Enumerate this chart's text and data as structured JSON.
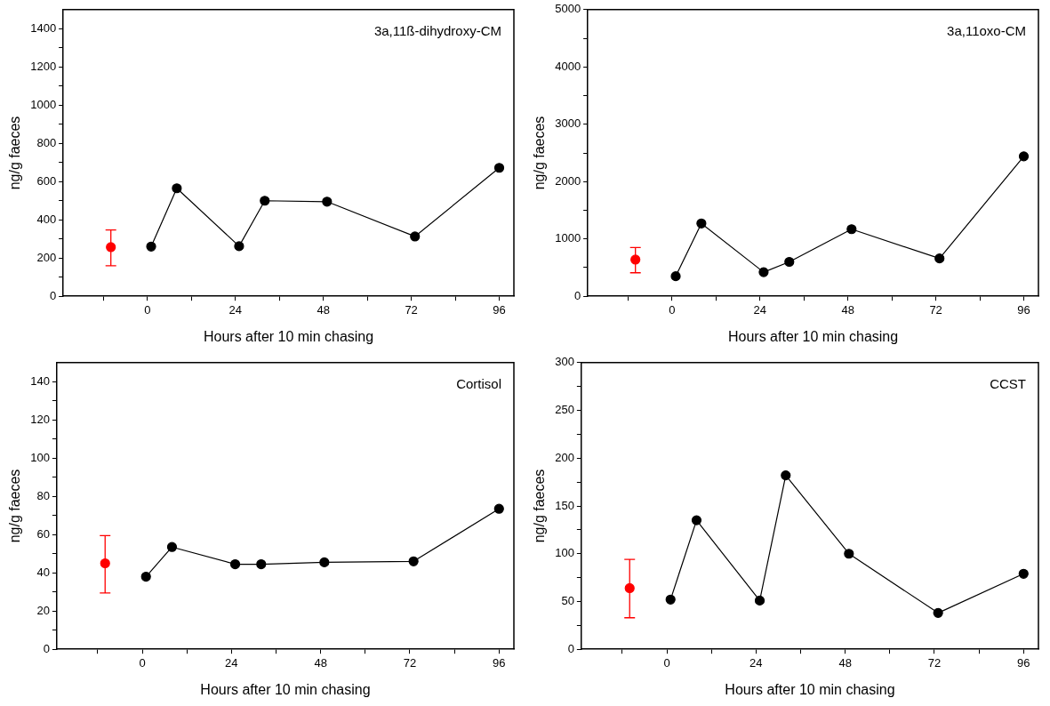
{
  "chart_data": [
    {
      "type": "line",
      "title": "3a,11ß-dihydroxy-CM",
      "xlabel": "Hours after 10 min chasing",
      "ylabel": "ng/g faeces",
      "marker": "circle",
      "xlim": [
        -23,
        100
      ],
      "xticks": [
        {
          "value": -12,
          "label": null
        },
        0,
        {
          "value": 12,
          "label": null
        },
        24,
        {
          "value": 36,
          "label": null
        },
        48,
        {
          "value": 60,
          "label": null
        },
        72,
        {
          "value": 84,
          "label": null
        },
        96
      ],
      "ylim": [
        0,
        1500
      ],
      "yticks": [
        0,
        {
          "value": 100,
          "label": null
        },
        200,
        {
          "value": 300,
          "label": null
        },
        400,
        {
          "value": 500,
          "label": null
        },
        600,
        {
          "value": 700,
          "label": null
        },
        800,
        {
          "value": 900,
          "label": null
        },
        1000,
        {
          "value": 1100,
          "label": null
        },
        1200,
        {
          "value": 1300,
          "label": null
        },
        1400
      ],
      "series": [
        {
          "type": "scatter",
          "color": "#ff0000",
          "x": [
            -10
          ],
          "values": [
            257
          ],
          "errors": [
            [
              160,
              347
            ]
          ]
        },
        {
          "type": "line",
          "color": "#000000",
          "x": [
            1,
            8,
            25,
            32,
            49,
            73,
            96
          ],
          "values": [
            260,
            565,
            262,
            500,
            495,
            313,
            672
          ]
        }
      ]
    },
    {
      "type": "line",
      "title": "3a,11oxo-CM",
      "xlabel": "Hours after 10 min chasing",
      "ylabel": "ng/g faeces",
      "marker": "circle",
      "xlim": [
        -23,
        100
      ],
      "xticks": [
        {
          "value": -12,
          "label": null
        },
        0,
        {
          "value": 12,
          "label": null
        },
        24,
        {
          "value": 36,
          "label": null
        },
        48,
        {
          "value": 60,
          "label": null
        },
        72,
        {
          "value": 84,
          "label": null
        },
        96
      ],
      "ylim": [
        0,
        5000
      ],
      "yticks": [
        0,
        {
          "value": 500,
          "label": null
        },
        1000,
        {
          "value": 1500,
          "label": null
        },
        2000,
        {
          "value": 2500,
          "label": null
        },
        3000,
        {
          "value": 3500,
          "label": null
        },
        4000,
        {
          "value": 4500,
          "label": null
        },
        5000
      ],
      "series": [
        {
          "type": "scatter",
          "color": "#ff0000",
          "x": [
            -10
          ],
          "values": [
            640
          ],
          "errors": [
            [
              410,
              850
            ]
          ]
        },
        {
          "type": "line",
          "color": "#000000",
          "x": [
            1,
            8,
            25,
            32,
            49,
            73,
            96
          ],
          "values": [
            350,
            1270,
            420,
            600,
            1170,
            660,
            2440
          ]
        }
      ]
    },
    {
      "type": "line",
      "title": "Cortisol",
      "xlabel": "Hours after 10 min chasing",
      "ylabel": "ng/g faeces",
      "marker": "circle",
      "xlim": [
        -23,
        100
      ],
      "xticks": [
        {
          "value": -12,
          "label": null
        },
        0,
        {
          "value": 12,
          "label": null
        },
        24,
        {
          "value": 36,
          "label": null
        },
        48,
        {
          "value": 60,
          "label": null
        },
        72,
        {
          "value": 84,
          "label": null
        },
        96
      ],
      "ylim": [
        0,
        150
      ],
      "yticks": [
        0,
        {
          "value": 10,
          "label": null
        },
        20,
        {
          "value": 30,
          "label": null
        },
        40,
        {
          "value": 50,
          "label": null
        },
        60,
        {
          "value": 70,
          "label": null
        },
        80,
        {
          "value": 90,
          "label": null
        },
        100,
        {
          "value": 110,
          "label": null
        },
        120,
        {
          "value": 130,
          "label": null
        },
        140
      ],
      "series": [
        {
          "type": "scatter",
          "color": "#ff0000",
          "x": [
            -10
          ],
          "values": [
            45
          ],
          "errors": [
            [
              29.5,
              59.5
            ]
          ]
        },
        {
          "type": "line",
          "color": "#000000",
          "x": [
            1,
            8,
            25,
            32,
            49,
            73,
            96
          ],
          "values": [
            38,
            53.5,
            44.5,
            44.5,
            45.5,
            46,
            73.5
          ]
        }
      ]
    },
    {
      "type": "line",
      "title": "CCST",
      "xlabel": "Hours after 10 min chasing",
      "ylabel": "ng/g faeces",
      "marker": "circle",
      "xlim": [
        -23,
        100
      ],
      "xticks": [
        {
          "value": -12,
          "label": null
        },
        0,
        {
          "value": 12,
          "label": null
        },
        24,
        {
          "value": 36,
          "label": null
        },
        48,
        {
          "value": 60,
          "label": null
        },
        72,
        {
          "value": 84,
          "label": null
        },
        96
      ],
      "ylim": [
        0,
        300
      ],
      "yticks": [
        0,
        {
          "value": 25,
          "label": null
        },
        50,
        {
          "value": 75,
          "label": null
        },
        100,
        {
          "value": 125,
          "label": null
        },
        150,
        {
          "value": 175,
          "label": null
        },
        200,
        {
          "value": 225,
          "label": null
        },
        250,
        {
          "value": 275,
          "label": null
        },
        300
      ],
      "series": [
        {
          "type": "scatter",
          "color": "#ff0000",
          "x": [
            -10
          ],
          "values": [
            64
          ],
          "errors": [
            [
              33,
              94
            ]
          ]
        },
        {
          "type": "line",
          "color": "#000000",
          "x": [
            1,
            8,
            25,
            32,
            49,
            73,
            96
          ],
          "values": [
            52,
            135,
            51,
            182,
            100,
            38,
            79
          ]
        }
      ]
    }
  ]
}
